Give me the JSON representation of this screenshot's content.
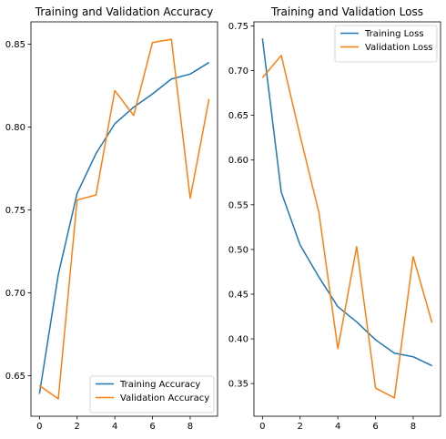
{
  "chart_data": [
    {
      "type": "line",
      "title": "Training and Validation Accuracy",
      "xlabel": "",
      "ylabel": "",
      "xlim": [
        -0.45,
        9.45
      ],
      "ylim": [
        0.6255,
        0.8635
      ],
      "xticks": [
        0,
        2,
        4,
        6,
        8
      ],
      "xtick_labels": [
        "0",
        "2",
        "4",
        "6",
        "8"
      ],
      "yticks": [
        0.65,
        0.7,
        0.75,
        0.8,
        0.85
      ],
      "ytick_labels": [
        "0.65",
        "0.70",
        "0.75",
        "0.80",
        "0.85"
      ],
      "grid": false,
      "legend_position": "lower-right",
      "x": [
        0,
        1,
        2,
        3,
        4,
        5,
        6,
        7,
        8,
        9
      ],
      "series": [
        {
          "name": "Training Accuracy",
          "color": "#1f77b4",
          "values": [
            0.639,
            0.711,
            0.76,
            0.784,
            0.802,
            0.812,
            0.82,
            0.829,
            0.832,
            0.839
          ]
        },
        {
          "name": "Validation Accuracy",
          "color": "#ff7f0e",
          "values": [
            0.644,
            0.636,
            0.756,
            0.759,
            0.822,
            0.807,
            0.851,
            0.853,
            0.757,
            0.817
          ]
        }
      ]
    },
    {
      "type": "line",
      "title": "Training and Validation Loss",
      "xlabel": "",
      "ylabel": "",
      "xlim": [
        -0.45,
        9.45
      ],
      "ylim": [
        0.3135,
        0.7545
      ],
      "xticks": [
        0,
        2,
        4,
        6,
        8
      ],
      "xtick_labels": [
        "0",
        "2",
        "4",
        "6",
        "8"
      ],
      "yticks": [
        0.35,
        0.4,
        0.45,
        0.5,
        0.55,
        0.6,
        0.65,
        0.7,
        0.75
      ],
      "ytick_labels": [
        "0.35",
        "0.40",
        "0.45",
        "0.50",
        "0.55",
        "0.60",
        "0.65",
        "0.70",
        "0.75"
      ],
      "grid": false,
      "legend_position": "upper-right",
      "x": [
        0,
        1,
        2,
        3,
        4,
        5,
        6,
        7,
        8,
        9
      ],
      "series": [
        {
          "name": "Training Loss",
          "color": "#1f77b4",
          "values": [
            0.736,
            0.564,
            0.505,
            0.469,
            0.436,
            0.419,
            0.399,
            0.384,
            0.38,
            0.37
          ]
        },
        {
          "name": "Validation Loss",
          "color": "#ff7f0e",
          "values": [
            0.692,
            0.717,
            0.627,
            0.541,
            0.389,
            0.503,
            0.345,
            0.334,
            0.492,
            0.418
          ]
        }
      ]
    }
  ]
}
